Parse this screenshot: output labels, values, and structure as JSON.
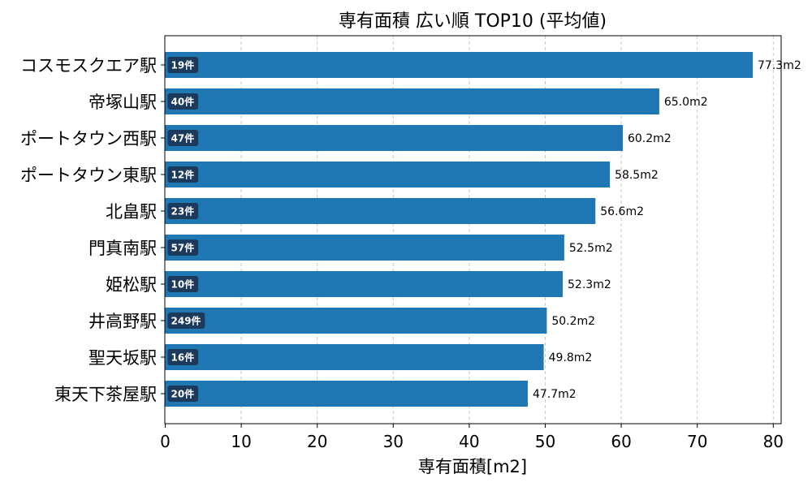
{
  "chart_data": {
    "type": "bar",
    "orientation": "horizontal",
    "title": "専有面積 広い順 TOP10 (平均値)",
    "xlabel": "専有面積[m2]",
    "ylabel": "",
    "xlim": [
      0,
      80
    ],
    "xticks": [
      "0",
      "10",
      "20",
      "30",
      "40",
      "50",
      "60",
      "70",
      "80"
    ],
    "grid": "x-dashed",
    "bar_color": "#1f77b4",
    "badge_color": "#1b3a5c",
    "categories": [
      "コスモスクエア駅",
      "帝塚山駅",
      "ポートタウン西駅",
      "ポートタウン東駅",
      "北畠駅",
      "門真南駅",
      "姫松駅",
      "井高野駅",
      "聖天坂駅",
      "東天下茶屋駅"
    ],
    "values": [
      77.3,
      65.0,
      60.2,
      58.5,
      56.6,
      52.5,
      52.3,
      50.2,
      49.8,
      47.7
    ],
    "value_labels": [
      "77.3m2",
      "65.0m2",
      "60.2m2",
      "58.5m2",
      "56.6m2",
      "52.5m2",
      "52.3m2",
      "50.2m2",
      "49.8m2",
      "47.7m2"
    ],
    "count_labels": [
      "19件",
      "40件",
      "47件",
      "12件",
      "23件",
      "57件",
      "10件",
      "249件",
      "16件",
      "20件"
    ]
  }
}
